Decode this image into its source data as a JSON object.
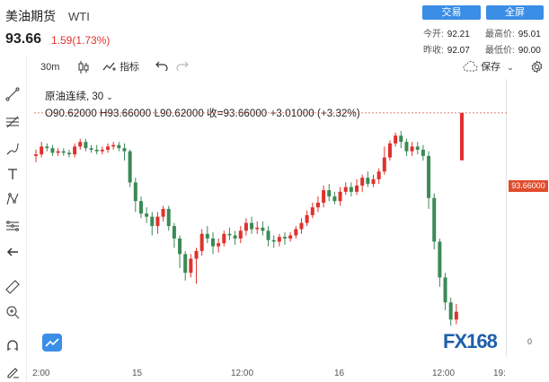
{
  "header": {
    "name": "美油期货",
    "symbol": "WTI",
    "price": "93.66",
    "change": "1.59(1.73%)",
    "trade_btn": "交易",
    "fullscreen_btn": "全屏",
    "open_label": "今开:",
    "open_value": "92.21",
    "high_label": "最高价:",
    "high_value": "95.01",
    "prev_label": "昨收:",
    "prev_value": "92.07",
    "low_label": "最低价:",
    "low_value": "90.00"
  },
  "toolbar": {
    "interval": "30m",
    "indicators": "指标",
    "save": "保存"
  },
  "legend": {
    "series_name": "原油连续, 30",
    "ohlc": "O90.62000 H93.66000 L90.62000 收=93.66000 +3.01000 (+3.32%)"
  },
  "last_price_label": "93.66000",
  "bottom_right_price": "0",
  "x_ticks": [
    "2:00",
    "15",
    "12:00",
    "16",
    "12:00",
    "19:"
  ],
  "logo_text": "FX168",
  "colors": {
    "up": "#e0312c",
    "down": "#3b8a57",
    "accent": "#3a8ee6"
  },
  "chart_data": {
    "type": "candlestick",
    "title": "原油连续, 30",
    "last_price": 93.66,
    "candles": [
      [
        90.9,
        91.0,
        91.3,
        90.5
      ],
      [
        91.0,
        91.5,
        91.8,
        90.8
      ],
      [
        91.5,
        91.4,
        91.7,
        91.2
      ],
      [
        91.4,
        91.1,
        91.6,
        90.9
      ],
      [
        91.1,
        91.2,
        91.4,
        90.9
      ],
      [
        91.2,
        91.1,
        91.4,
        90.9
      ],
      [
        91.1,
        91.0,
        91.3,
        90.8
      ],
      [
        91.0,
        91.5,
        91.7,
        90.8
      ],
      [
        91.5,
        91.8,
        92.0,
        91.3
      ],
      [
        91.8,
        91.4,
        92.0,
        91.2
      ],
      [
        91.4,
        91.3,
        91.6,
        91.1
      ],
      [
        91.3,
        91.2,
        91.6,
        91.0
      ],
      [
        91.2,
        91.3,
        91.5,
        91.0
      ],
      [
        91.3,
        91.5,
        91.7,
        91.1
      ],
      [
        91.5,
        91.6,
        91.8,
        91.3
      ],
      [
        91.6,
        91.4,
        91.8,
        91.2
      ],
      [
        91.4,
        91.2,
        91.7,
        90.6
      ],
      [
        91.2,
        89.2,
        91.3,
        88.9
      ],
      [
        89.2,
        88.0,
        89.5,
        87.3
      ],
      [
        88.0,
        87.2,
        88.3,
        86.9
      ],
      [
        87.2,
        87.0,
        87.6,
        86.6
      ],
      [
        87.0,
        86.4,
        87.3,
        85.8
      ],
      [
        86.4,
        87.0,
        87.3,
        85.9
      ],
      [
        87.0,
        87.5,
        87.7,
        86.7
      ],
      [
        87.5,
        86.4,
        87.7,
        86.1
      ],
      [
        86.4,
        85.6,
        86.6,
        85.0
      ],
      [
        85.6,
        84.6,
        85.8,
        83.7
      ],
      [
        84.6,
        83.4,
        84.8,
        82.9
      ],
      [
        83.4,
        84.3,
        84.6,
        83.1
      ],
      [
        84.3,
        84.8,
        85.0,
        82.7
      ],
      [
        84.8,
        85.9,
        86.2,
        84.5
      ],
      [
        85.9,
        85.6,
        86.4,
        85.3
      ],
      [
        85.6,
        85.1,
        86.0,
        84.6
      ],
      [
        85.1,
        85.3,
        85.6,
        84.7
      ],
      [
        85.3,
        85.9,
        86.1,
        85.1
      ],
      [
        85.9,
        85.8,
        86.3,
        85.5
      ],
      [
        85.8,
        85.6,
        86.1,
        85.2
      ],
      [
        85.6,
        86.1,
        86.4,
        85.3
      ],
      [
        86.1,
        86.6,
        86.9,
        85.8
      ],
      [
        86.6,
        86.2,
        87.0,
        85.9
      ],
      [
        86.2,
        86.3,
        86.7,
        85.9
      ],
      [
        86.3,
        86.1,
        86.7,
        85.8
      ],
      [
        86.1,
        85.5,
        86.4,
        85.1
      ],
      [
        85.5,
        85.4,
        85.8,
        85.0
      ],
      [
        85.4,
        85.7,
        85.9,
        85.1
      ],
      [
        85.7,
        85.6,
        86.0,
        85.2
      ],
      [
        85.6,
        85.8,
        86.0,
        85.4
      ],
      [
        85.8,
        86.2,
        86.4,
        85.6
      ],
      [
        86.2,
        86.6,
        86.9,
        85.9
      ],
      [
        86.6,
        87.1,
        87.4,
        86.4
      ],
      [
        87.1,
        87.6,
        87.9,
        86.9
      ],
      [
        87.6,
        87.9,
        88.3,
        87.3
      ],
      [
        87.9,
        88.7,
        89.0,
        87.6
      ],
      [
        88.7,
        88.3,
        89.1,
        88.0
      ],
      [
        88.3,
        88.0,
        88.6,
        87.8
      ],
      [
        88.0,
        88.6,
        88.9,
        87.7
      ],
      [
        88.6,
        88.9,
        89.2,
        88.4
      ],
      [
        88.9,
        88.6,
        89.2,
        88.3
      ],
      [
        88.6,
        89.0,
        89.4,
        88.4
      ],
      [
        89.0,
        89.5,
        89.7,
        88.6
      ],
      [
        89.5,
        89.1,
        89.9,
        88.9
      ],
      [
        89.1,
        89.4,
        89.7,
        88.9
      ],
      [
        89.4,
        89.9,
        90.1,
        89.1
      ],
      [
        89.9,
        90.8,
        91.5,
        89.7
      ],
      [
        90.8,
        91.7,
        91.9,
        90.6
      ],
      [
        91.7,
        92.2,
        92.4,
        91.5
      ],
      [
        92.2,
        91.8,
        92.5,
        91.4
      ],
      [
        91.8,
        91.2,
        92.0,
        90.9
      ],
      [
        91.2,
        91.5,
        91.8,
        90.9
      ],
      [
        91.5,
        91.3,
        91.8,
        91.0
      ],
      [
        91.3,
        90.9,
        91.6,
        90.6
      ],
      [
        90.9,
        88.2,
        91.2,
        87.5
      ],
      [
        88.2,
        85.4,
        88.5,
        84.9
      ],
      [
        85.4,
        83.1,
        85.6,
        82.5
      ],
      [
        83.1,
        81.5,
        83.4,
        81.0
      ],
      [
        81.5,
        80.4,
        81.8,
        80.0
      ],
      [
        80.4,
        80.9,
        81.4,
        80.1
      ],
      [
        90.62,
        93.66,
        93.66,
        90.62
      ]
    ],
    "y_range": [
      79.5,
      94
    ]
  }
}
